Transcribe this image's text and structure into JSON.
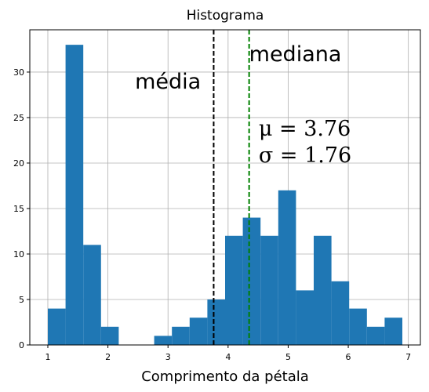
{
  "chart_data": {
    "type": "bar",
    "title": "Histograma",
    "xlabel": "Comprimento da pétala",
    "ylabel": "",
    "xlim": [
      0.7,
      7.2
    ],
    "ylim": [
      0,
      34.65
    ],
    "xticks": [
      "1",
      "2",
      "3",
      "4",
      "5",
      "6",
      "7"
    ],
    "yticks": [
      "0",
      "5",
      "10",
      "15",
      "20",
      "25",
      "30"
    ],
    "grid": true,
    "bar_color": "#1f77b4",
    "bins": [
      {
        "start": 1.0,
        "end": 1.295,
        "count": 4
      },
      {
        "start": 1.295,
        "end": 1.59,
        "count": 33
      },
      {
        "start": 1.59,
        "end": 1.885,
        "count": 11
      },
      {
        "start": 1.885,
        "end": 2.18,
        "count": 2
      },
      {
        "start": 2.18,
        "end": 2.475,
        "count": 0
      },
      {
        "start": 2.475,
        "end": 2.77,
        "count": 0
      },
      {
        "start": 2.77,
        "end": 3.065,
        "count": 1
      },
      {
        "start": 3.065,
        "end": 3.36,
        "count": 2
      },
      {
        "start": 3.36,
        "end": 3.655,
        "count": 3
      },
      {
        "start": 3.655,
        "end": 3.95,
        "count": 5
      },
      {
        "start": 3.95,
        "end": 4.245,
        "count": 12
      },
      {
        "start": 4.245,
        "end": 4.54,
        "count": 14
      },
      {
        "start": 4.54,
        "end": 4.835,
        "count": 12
      },
      {
        "start": 4.835,
        "end": 5.13,
        "count": 17
      },
      {
        "start": 5.13,
        "end": 5.425,
        "count": 6
      },
      {
        "start": 5.425,
        "end": 5.72,
        "count": 12
      },
      {
        "start": 5.72,
        "end": 6.015,
        "count": 7
      },
      {
        "start": 6.015,
        "end": 6.31,
        "count": 4
      },
      {
        "start": 6.31,
        "end": 6.605,
        "count": 2
      },
      {
        "start": 6.605,
        "end": 6.9,
        "count": 3
      }
    ],
    "lines": [
      {
        "name": "média",
        "x": 3.76,
        "color": "#000000",
        "style": "dashed"
      },
      {
        "name": "mediana",
        "x": 4.35,
        "color": "#008000",
        "style": "dashed"
      }
    ],
    "annotations": [
      {
        "text": "média",
        "x": 2.45,
        "y": 28.2
      },
      {
        "text": "mediana",
        "x": 4.35,
        "y": 31.2
      }
    ],
    "stats_text": {
      "mu": "μ = 3.76",
      "sigma": "σ = 1.76",
      "x": 4.51,
      "y_mu": 23.0,
      "y_sigma": 20.1
    }
  }
}
